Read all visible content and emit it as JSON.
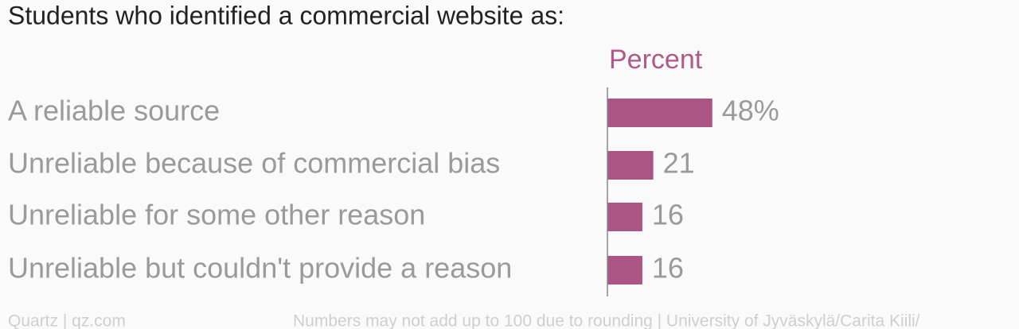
{
  "chart_data": {
    "type": "bar",
    "orientation": "horizontal",
    "title": "Students who identified a commercial website as:",
    "value_axis_label": "Percent",
    "categories": [
      "A reliable source",
      "Unreliable because of commercial bias",
      "Unreliable for some other reason",
      "Unreliable but couldn't provide a reason"
    ],
    "values": [
      48,
      21,
      16,
      16
    ],
    "value_labels": [
      "48%",
      "21",
      "16",
      "16"
    ],
    "color": "#ab5585",
    "xlim": [
      0,
      90
    ],
    "source": "Quartz | qz.com",
    "note": "Numbers may not add up to 100 due to rounding | University of Jyväskylä/Carita Kiili/"
  }
}
